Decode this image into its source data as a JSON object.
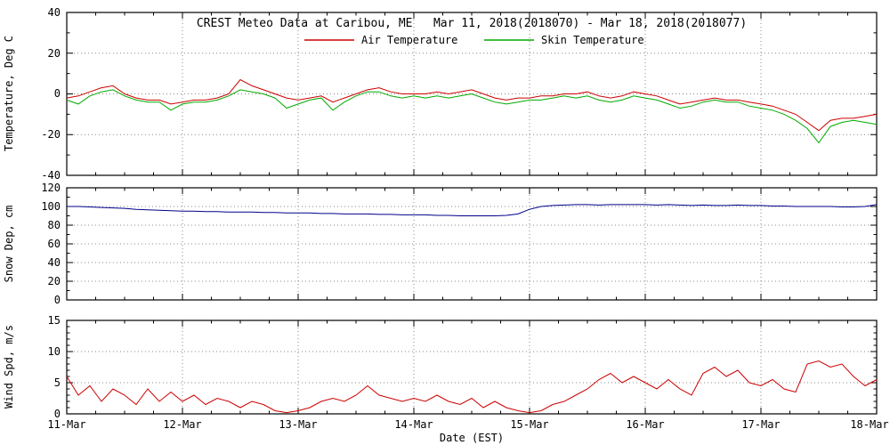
{
  "title": "CREST Meteo Data at Caribou, ME   Mar 11, 2018(2018070) - Mar 18, 2018(2018077)",
  "legend": [
    {
      "label": "Air Temperature",
      "color": "#cc0000"
    },
    {
      "label": "Skin Temperature",
      "color": "#00aa00"
    }
  ],
  "x_axis": {
    "label": "Date (EST)",
    "tick_labels": [
      "11-Mar",
      "12-Mar",
      "13-Mar",
      "14-Mar",
      "15-Mar",
      "16-Mar",
      "17-Mar",
      "18-Mar"
    ],
    "range_days": [
      11,
      18
    ]
  },
  "x_days": [
    11,
    11.1,
    11.2,
    11.3,
    11.4,
    11.5,
    11.6,
    11.7,
    11.8,
    11.9,
    12,
    12.1,
    12.2,
    12.3,
    12.4,
    12.5,
    12.6,
    12.7,
    12.8,
    12.9,
    13,
    13.1,
    13.2,
    13.3,
    13.4,
    13.5,
    13.6,
    13.7,
    13.8,
    13.9,
    14,
    14.1,
    14.2,
    14.3,
    14.4,
    14.5,
    14.6,
    14.7,
    14.8,
    14.9,
    15,
    15.1,
    15.2,
    15.3,
    15.4,
    15.5,
    15.6,
    15.7,
    15.8,
    15.9,
    16,
    16.1,
    16.2,
    16.3,
    16.4,
    16.5,
    16.6,
    16.7,
    16.8,
    16.9,
    17,
    17.1,
    17.2,
    17.3,
    17.4,
    17.5,
    17.6,
    17.7,
    17.8,
    17.9,
    18
  ],
  "chart_data": [
    {
      "type": "line",
      "ylabel": "Temperature, Deg C",
      "ylim": [
        -40,
        40
      ],
      "yticks": [
        40,
        20,
        0,
        -20,
        -40
      ],
      "y_minor": 10,
      "series": [
        {
          "name": "Air Temperature",
          "color": "#cc0000",
          "values": [
            -2,
            -1,
            1,
            3,
            4,
            0,
            -2,
            -3,
            -3,
            -5,
            -4,
            -3,
            -3,
            -2,
            0,
            7,
            4,
            2,
            0,
            -2,
            -3,
            -2,
            -1,
            -4,
            -2,
            0,
            2,
            3,
            1,
            0,
            0,
            0,
            1,
            0,
            1,
            2,
            0,
            -2,
            -3,
            -2,
            -2,
            -1,
            -1,
            0,
            0,
            1,
            -1,
            -2,
            -1,
            1,
            0,
            -1,
            -3,
            -5,
            -4,
            -3,
            -2,
            -3,
            -3,
            -4,
            -5,
            -6,
            -8,
            -10,
            -14,
            -18,
            -13,
            -12,
            -12,
            -11,
            -10
          ]
        },
        {
          "name": "Skin Temperature",
          "color": "#00aa00",
          "values": [
            -3,
            -5,
            -1,
            1,
            2,
            -1,
            -3,
            -4,
            -4,
            -8,
            -5,
            -4,
            -4,
            -3,
            -1,
            2,
            1,
            0,
            -2,
            -7,
            -5,
            -3,
            -2,
            -8,
            -4,
            -1,
            1,
            1,
            -1,
            -2,
            -1,
            -2,
            -1,
            -2,
            -1,
            0,
            -2,
            -4,
            -5,
            -4,
            -3,
            -3,
            -2,
            -1,
            -2,
            -1,
            -3,
            -4,
            -3,
            -1,
            -2,
            -3,
            -5,
            -7,
            -6,
            -4,
            -3,
            -4,
            -4,
            -6,
            -7,
            -8,
            -10,
            -13,
            -17,
            -24,
            -16,
            -14,
            -13,
            -14,
            -15
          ]
        }
      ]
    },
    {
      "type": "line",
      "ylabel": "Snow Dep, cm",
      "ylim": [
        0,
        120
      ],
      "yticks": [
        120,
        100,
        80,
        60,
        40,
        20,
        0
      ],
      "y_minor": 10,
      "series": [
        {
          "name": "Snow Depth",
          "color": "#00008b",
          "values": [
            100,
            100,
            99.5,
            99,
            98.5,
            98,
            97,
            96.5,
            96,
            95.5,
            95,
            95,
            94.5,
            94.5,
            94,
            94,
            94,
            93.5,
            93.5,
            93,
            93,
            93,
            92.5,
            92.5,
            92,
            92,
            92,
            91.5,
            91.5,
            91,
            91,
            91,
            90.5,
            90.5,
            90,
            90,
            90,
            90,
            90.5,
            92,
            97,
            100,
            101,
            101.5,
            102,
            102,
            101.5,
            102,
            102,
            102,
            102,
            101.5,
            102,
            101.5,
            101,
            101.5,
            101,
            101,
            101.5,
            101,
            101,
            100.5,
            100.5,
            100,
            100,
            100,
            100,
            99.5,
            99.5,
            100,
            102
          ]
        }
      ]
    },
    {
      "type": "line",
      "ylabel": "Wind Spd, m/s",
      "ylim": [
        0,
        15
      ],
      "yticks": [
        15,
        10,
        5,
        0
      ],
      "y_minor": 1,
      "series": [
        {
          "name": "Wind Speed",
          "color": "#cc0000",
          "values": [
            6,
            3,
            4.5,
            2,
            4,
            3,
            1.5,
            4,
            2,
            3.5,
            2,
            3,
            1.5,
            2.5,
            2,
            1,
            2,
            1.5,
            0.5,
            0.2,
            0.5,
            1,
            2,
            2.5,
            2,
            3,
            4.5,
            3,
            2.5,
            2,
            2.5,
            2,
            3,
            2,
            1.5,
            2.5,
            1,
            2,
            1,
            0.5,
            0.2,
            0.5,
            1.5,
            2,
            3,
            4,
            5.5,
            6.5,
            5,
            6,
            5,
            4,
            5.5,
            4,
            3,
            6.5,
            7.5,
            6,
            7,
            5,
            4.5,
            5.5,
            4,
            3.5,
            8,
            8.5,
            7.5,
            8,
            6,
            4.5,
            5.5
          ]
        }
      ]
    }
  ]
}
